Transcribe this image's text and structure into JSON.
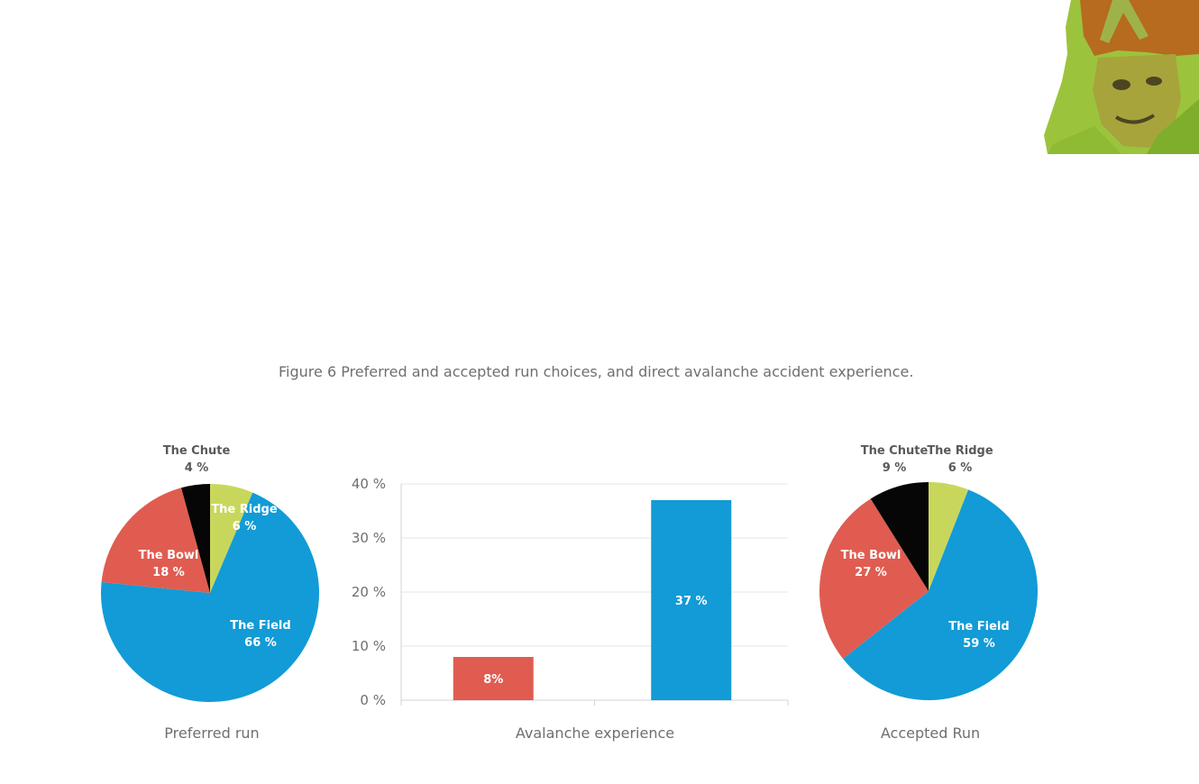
{
  "caption": "Figure 6 Preferred and accepted run choices, and direct avalanche accident experience.",
  "chart_data": [
    {
      "type": "pie",
      "xlabel": "Preferred run",
      "slices": [
        {
          "label": "The Ridge",
          "value": 6,
          "text": "6 %",
          "color": "#c8d75c"
        },
        {
          "label": "The Field",
          "value": 66,
          "text": "66 %",
          "color": "#129bd6"
        },
        {
          "label": "The Bowl",
          "value": 18,
          "text": "18 %",
          "color": "#e05c51"
        },
        {
          "label": "The Chute",
          "value": 4,
          "text": "4 %",
          "color": "#060606"
        }
      ]
    },
    {
      "type": "bar",
      "xlabel": "Avalanche experience",
      "ylim": [
        0,
        40
      ],
      "yticks": [
        "0 %",
        "10 %",
        "20 %",
        "30 %",
        "40 %"
      ],
      "grid": true,
      "bars": [
        {
          "value": 8,
          "text": "8%",
          "color": "#e05c51"
        },
        {
          "value": 37,
          "text": "37 %",
          "color": "#129bd6"
        }
      ]
    },
    {
      "type": "pie",
      "xlabel": "Accepted Run",
      "slices": [
        {
          "label": "The Ridge",
          "value": 6,
          "text": "6 %",
          "color": "#c8d75c"
        },
        {
          "label": "The Field",
          "value": 59,
          "text": "59 %",
          "color": "#129bd6"
        },
        {
          "label": "The Bowl",
          "value": 27,
          "text": "27 %",
          "color": "#e05c51"
        },
        {
          "label": "The Chute",
          "value": 9,
          "text": "9 %",
          "color": "#060606"
        }
      ]
    }
  ]
}
